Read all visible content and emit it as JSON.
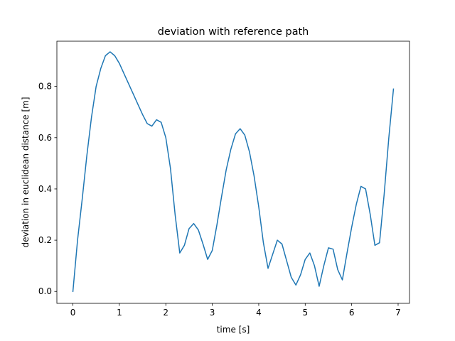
{
  "chart_data": {
    "type": "line",
    "title": "deviation with reference path",
    "xlabel": "time [s]",
    "ylabel": "deviation in euclidean distance [m]",
    "xlim": [
      -0.345,
      7.245
    ],
    "ylim": [
      -0.0465,
      0.9765
    ],
    "xticks": [
      0,
      1,
      2,
      3,
      4,
      5,
      6,
      7
    ],
    "xtick_labels": [
      "0",
      "1",
      "2",
      "3",
      "4",
      "5",
      "6",
      "7"
    ],
    "yticks": [
      0.0,
      0.2,
      0.4,
      0.6,
      0.8
    ],
    "ytick_labels": [
      "0.0",
      "0.2",
      "0.4",
      "0.6",
      "0.8"
    ],
    "grid": false,
    "series": [
      {
        "color": "#1f77b4",
        "x": [
          0.0,
          0.1,
          0.2,
          0.3,
          0.4,
          0.5,
          0.6,
          0.7,
          0.8,
          0.9,
          1.0,
          1.1,
          1.2,
          1.3,
          1.4,
          1.5,
          1.6,
          1.7,
          1.8,
          1.9,
          2.0,
          2.1,
          2.2,
          2.3,
          2.4,
          2.5,
          2.6,
          2.7,
          2.8,
          2.9,
          3.0,
          3.1,
          3.2,
          3.3,
          3.4,
          3.5,
          3.6,
          3.7,
          3.8,
          3.9,
          4.0,
          4.1,
          4.2,
          4.3,
          4.4,
          4.5,
          4.6,
          4.7,
          4.8,
          4.9,
          5.0,
          5.1,
          5.2,
          5.3,
          5.4,
          5.5,
          5.6,
          5.7,
          5.8,
          5.9,
          6.0,
          6.1,
          6.2,
          6.3,
          6.4,
          6.5,
          6.6,
          6.7,
          6.8,
          6.9
        ],
        "y": [
          0.0,
          0.2,
          0.36,
          0.53,
          0.68,
          0.8,
          0.87,
          0.92,
          0.935,
          0.92,
          0.89,
          0.85,
          0.81,
          0.77,
          0.73,
          0.69,
          0.655,
          0.645,
          0.67,
          0.66,
          0.6,
          0.48,
          0.3,
          0.15,
          0.18,
          0.245,
          0.265,
          0.24,
          0.185,
          0.125,
          0.16,
          0.26,
          0.37,
          0.475,
          0.555,
          0.615,
          0.635,
          0.61,
          0.545,
          0.45,
          0.33,
          0.19,
          0.09,
          0.145,
          0.2,
          0.185,
          0.12,
          0.055,
          0.025,
          0.065,
          0.125,
          0.15,
          0.1,
          0.02,
          0.1,
          0.17,
          0.165,
          0.085,
          0.045,
          0.15,
          0.25,
          0.34,
          0.41,
          0.4,
          0.3,
          0.18,
          0.19,
          0.38,
          0.6,
          0.79
        ]
      }
    ]
  }
}
